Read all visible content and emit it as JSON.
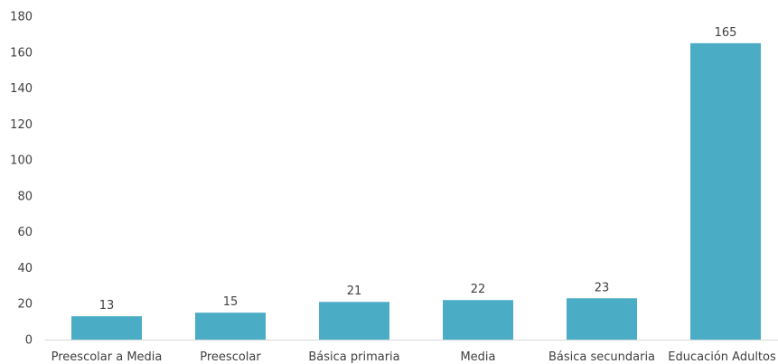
{
  "chart_data": {
    "type": "bar",
    "title": "",
    "xlabel": "",
    "ylabel": "",
    "categories": [
      "Preescolar a Media",
      "Preescolar",
      "Básica primaria",
      "Media",
      "Básica secundaria",
      "Educación Adultos"
    ],
    "values": [
      13,
      15,
      21,
      22,
      23,
      165
    ],
    "ylim": [
      0,
      180
    ],
    "yticks": [
      0,
      20,
      40,
      60,
      80,
      100,
      120,
      140,
      160,
      180
    ],
    "grid": false,
    "legend": "none",
    "data_labels": true,
    "colors": {
      "bar": "#4BACC6",
      "text": "#404040",
      "axis": "#D9D9D9"
    }
  }
}
